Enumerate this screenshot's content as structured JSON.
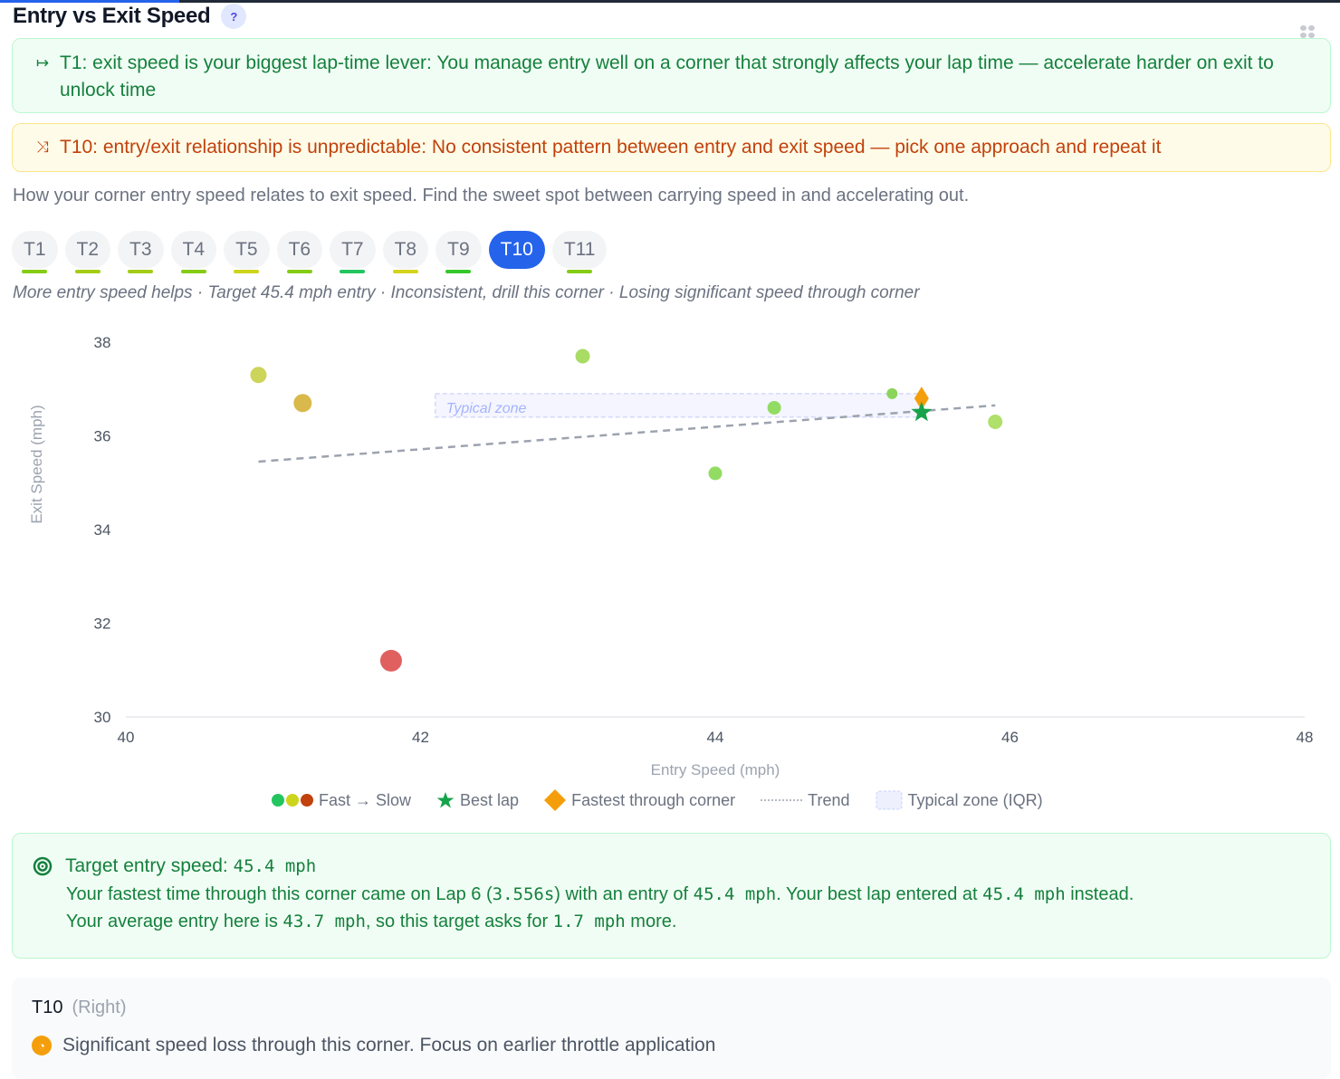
{
  "header": {
    "title": "Entry vs Exit Speed",
    "help_label": "?"
  },
  "alerts": [
    {
      "icon": "exit-arrow-icon",
      "glyph": "↦",
      "title": "T1: exit speed is your biggest lap-time lever:",
      "text": " You manage entry well on a corner that strongly affects your lap time — accelerate harder on exit to unlock time",
      "color": "#15803d"
    },
    {
      "icon": "shuffle-icon",
      "glyph": "⤨",
      "title": "T10: entry/exit relationship is unpredictable:",
      "text": " No consistent pattern between entry and exit speed — pick one approach and repeat it",
      "color": "#c2410c"
    }
  ],
  "description": "How your corner entry speed relates to exit speed. Find the sweet spot between carrying speed in and accelerating out.",
  "tabs": [
    {
      "label": "T1",
      "bar": "#84cc16"
    },
    {
      "label": "T2",
      "bar": "#a3cc16"
    },
    {
      "label": "T3",
      "bar": "#a3cc16"
    },
    {
      "label": "T4",
      "bar": "#84cc16"
    },
    {
      "label": "T5",
      "bar": "#cdd41c"
    },
    {
      "label": "T6",
      "bar": "#84cc16"
    },
    {
      "label": "T7",
      "bar": "#22c55e"
    },
    {
      "label": "T8",
      "bar": "#d4d41c"
    },
    {
      "label": "T9",
      "bar": "#34c82a"
    },
    {
      "label": "T10",
      "bar": "",
      "active": true
    },
    {
      "label": "T11",
      "bar": "#84cc16"
    }
  ],
  "subtitle": "More entry speed helps · Target 45.4 mph entry · Inconsistent, drill this corner · Losing significant speed through corner",
  "chart_data": {
    "type": "scatter",
    "title": "Entry vs Exit Speed",
    "xlabel": "Entry Speed (mph)",
    "ylabel": "Exit Speed (mph)",
    "xlim": [
      40,
      48
    ],
    "ylim": [
      30,
      38
    ],
    "xticks": [
      40,
      42,
      44,
      46,
      48
    ],
    "yticks": [
      30,
      32,
      34,
      36,
      38
    ],
    "grid": false,
    "series": [
      {
        "name": "Laps (Fast → Slow)",
        "points": [
          {
            "x": 40.9,
            "y": 37.3,
            "color": "#cdd45a",
            "r": 9
          },
          {
            "x": 41.2,
            "y": 36.7,
            "color": "#d9b94c",
            "r": 10
          },
          {
            "x": 41.8,
            "y": 31.2,
            "color": "#e06060",
            "r": 12
          },
          {
            "x": 43.1,
            "y": 37.7,
            "color": "#a8dc64",
            "r": 8
          },
          {
            "x": 44.0,
            "y": 35.2,
            "color": "#92dc64",
            "r": 7.5
          },
          {
            "x": 44.4,
            "y": 36.6,
            "color": "#92dc64",
            "r": 7.5
          },
          {
            "x": 45.2,
            "y": 36.9,
            "color": "#8ad45a",
            "r": 6
          },
          {
            "x": 45.9,
            "y": 36.3,
            "color": "#aee06a",
            "r": 8
          }
        ]
      },
      {
        "name": "Best lap",
        "marker": "star",
        "points": [
          {
            "x": 45.4,
            "y": 36.5
          }
        ],
        "color": "#16a34a"
      },
      {
        "name": "Fastest through corner",
        "marker": "diamond",
        "points": [
          {
            "x": 45.4,
            "y": 36.8
          }
        ],
        "color": "#f59e0b"
      }
    ],
    "trend": {
      "x1": 40.9,
      "y1": 35.45,
      "x2": 45.9,
      "y2": 36.65
    },
    "typical_zone": {
      "x1": 42.1,
      "x2": 45.4,
      "y1": 36.4,
      "y2": 36.9,
      "label": "Typical zone"
    },
    "legend": [
      {
        "label": "Fast → Slow",
        "icon": "color-scale-dots"
      },
      {
        "label": "Best lap",
        "icon": "star-icon"
      },
      {
        "label": "Fastest through corner",
        "icon": "diamond-icon"
      },
      {
        "label": "Trend",
        "icon": "dashed-line-icon"
      },
      {
        "label": "Typical zone (IQR)",
        "icon": "zone-box-icon"
      }
    ],
    "legend_position": "bottom"
  },
  "target": {
    "head_label": "Target entry speed:",
    "head_value": "45.4 mph",
    "line1_a": "Your fastest time through this corner came on Lap 6 (",
    "line1_time": "3.556s",
    "line1_b": ") with an entry of ",
    "line1_entry": "45.4 mph",
    "line1_c": ". Your best lap entered at ",
    "line1_best": "45.4 mph",
    "line1_d": " instead.",
    "line2_a": "Your average entry here is ",
    "line2_avg": "43.7 mph",
    "line2_b": ", so this target asks for ",
    "line2_more": "1.7 mph",
    "line2_c": " more."
  },
  "corner": {
    "name": "T10",
    "direction": "(Right)",
    "note": "Significant speed loss through this corner. Focus on earlier throttle application"
  }
}
